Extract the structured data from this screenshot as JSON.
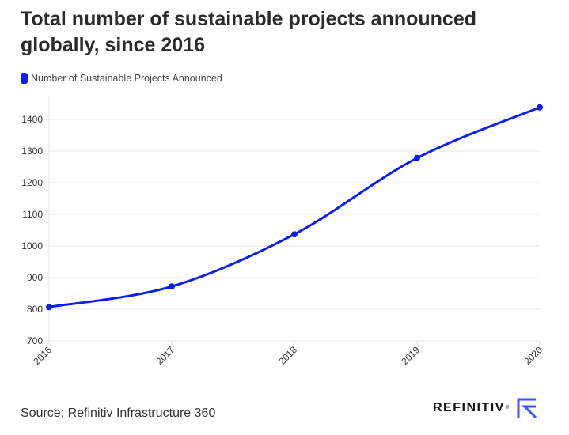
{
  "title": "Total number of sustainable projects announced globally, since 2016",
  "legend": {
    "label": "Number of Sustainable Projects Announced",
    "color": "#0a1ef5"
  },
  "source": "Source: Refinitiv Infrastructure 360",
  "logo": {
    "text": "REFINITIV",
    "reg": "®",
    "icon": "refinitiv-r-icon",
    "color": "#3a55f5"
  },
  "chart_data": {
    "type": "line",
    "title": "Total number of sustainable projects announced globally, since 2016",
    "xlabel": "",
    "ylabel": "",
    "categories": [
      "2016",
      "2017",
      "2018",
      "2019",
      "2020"
    ],
    "series": [
      {
        "name": "Number of Sustainable Projects Announced",
        "color": "#0a1ef5",
        "values": [
          807,
          872,
          1037,
          1278,
          1438
        ]
      }
    ],
    "ylim": [
      700,
      1450
    ],
    "yticks": [
      700,
      800,
      900,
      1000,
      1100,
      1200,
      1300,
      1400
    ],
    "grid": true,
    "legend_position": "top-left",
    "smooth": true
  }
}
